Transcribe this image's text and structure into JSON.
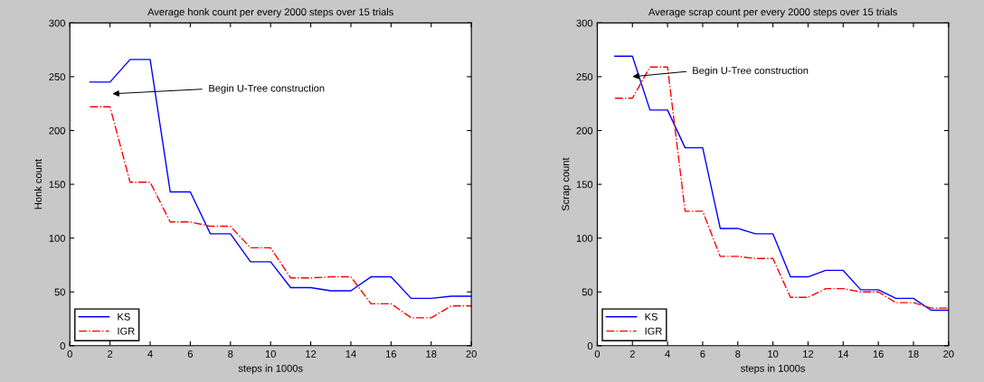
{
  "chart_data": [
    {
      "type": "line",
      "title": "Average honk count per every 2000 steps over 15 trials",
      "xlabel": "steps in 1000s",
      "ylabel": "Honk count",
      "x": [
        1,
        2,
        3,
        4,
        5,
        6,
        7,
        8,
        9,
        10,
        11,
        12,
        13,
        14,
        15,
        16,
        17,
        18,
        19,
        20
      ],
      "series": [
        {
          "name": "KS",
          "color": "#0000ff",
          "line_style": "solid",
          "values": [
            245,
            245,
            266,
            266,
            143,
            143,
            104,
            104,
            78,
            78,
            54,
            54,
            51,
            51,
            64,
            64,
            44,
            44,
            46,
            46
          ]
        },
        {
          "name": "IGR",
          "color": "#ff0000",
          "line_style": "dashdot",
          "values": [
            222,
            222,
            152,
            152,
            115,
            115,
            111,
            111,
            91,
            91,
            63,
            63,
            64,
            64,
            39,
            39,
            26,
            26,
            37,
            37
          ]
        }
      ],
      "xlim": [
        0,
        20
      ],
      "xticks": [
        0,
        2,
        4,
        6,
        8,
        10,
        12,
        14,
        16,
        18,
        20
      ],
      "ylim": [
        0,
        300
      ],
      "yticks": [
        0,
        50,
        100,
        150,
        200,
        250,
        300
      ],
      "annotations": [
        "Begin U-Tree construction"
      ],
      "legend": "bottom left",
      "grid": false
    },
    {
      "type": "line",
      "title": "Average scrap count per every 2000 steps over 15 trials",
      "xlabel": "steps in 1000s",
      "ylabel": "Scrap count",
      "x": [
        1,
        2,
        3,
        4,
        5,
        6,
        7,
        8,
        9,
        10,
        11,
        12,
        13,
        14,
        15,
        16,
        17,
        18,
        19,
        20
      ],
      "series": [
        {
          "name": "KS",
          "color": "#0000ff",
          "line_style": "solid",
          "values": [
            269,
            269,
            219,
            219,
            184,
            184,
            109,
            109,
            104,
            104,
            64,
            64,
            70,
            70,
            52,
            52,
            44,
            44,
            33,
            33
          ]
        },
        {
          "name": "IGR",
          "color": "#ff0000",
          "line_style": "dashdot",
          "values": [
            230,
            230,
            259,
            259,
            125,
            125,
            83,
            83,
            81,
            81,
            45,
            45,
            53,
            53,
            50,
            50,
            40,
            40,
            35,
            35
          ]
        }
      ],
      "xlim": [
        0,
        20
      ],
      "xticks": [
        0,
        2,
        4,
        6,
        8,
        10,
        12,
        14,
        16,
        18,
        20
      ],
      "ylim": [
        0,
        300
      ],
      "yticks": [
        0,
        50,
        100,
        150,
        200,
        250,
        300
      ],
      "annotations": [
        "Begin U-Tree construction"
      ],
      "legend": "bottom left",
      "grid": false
    }
  ]
}
